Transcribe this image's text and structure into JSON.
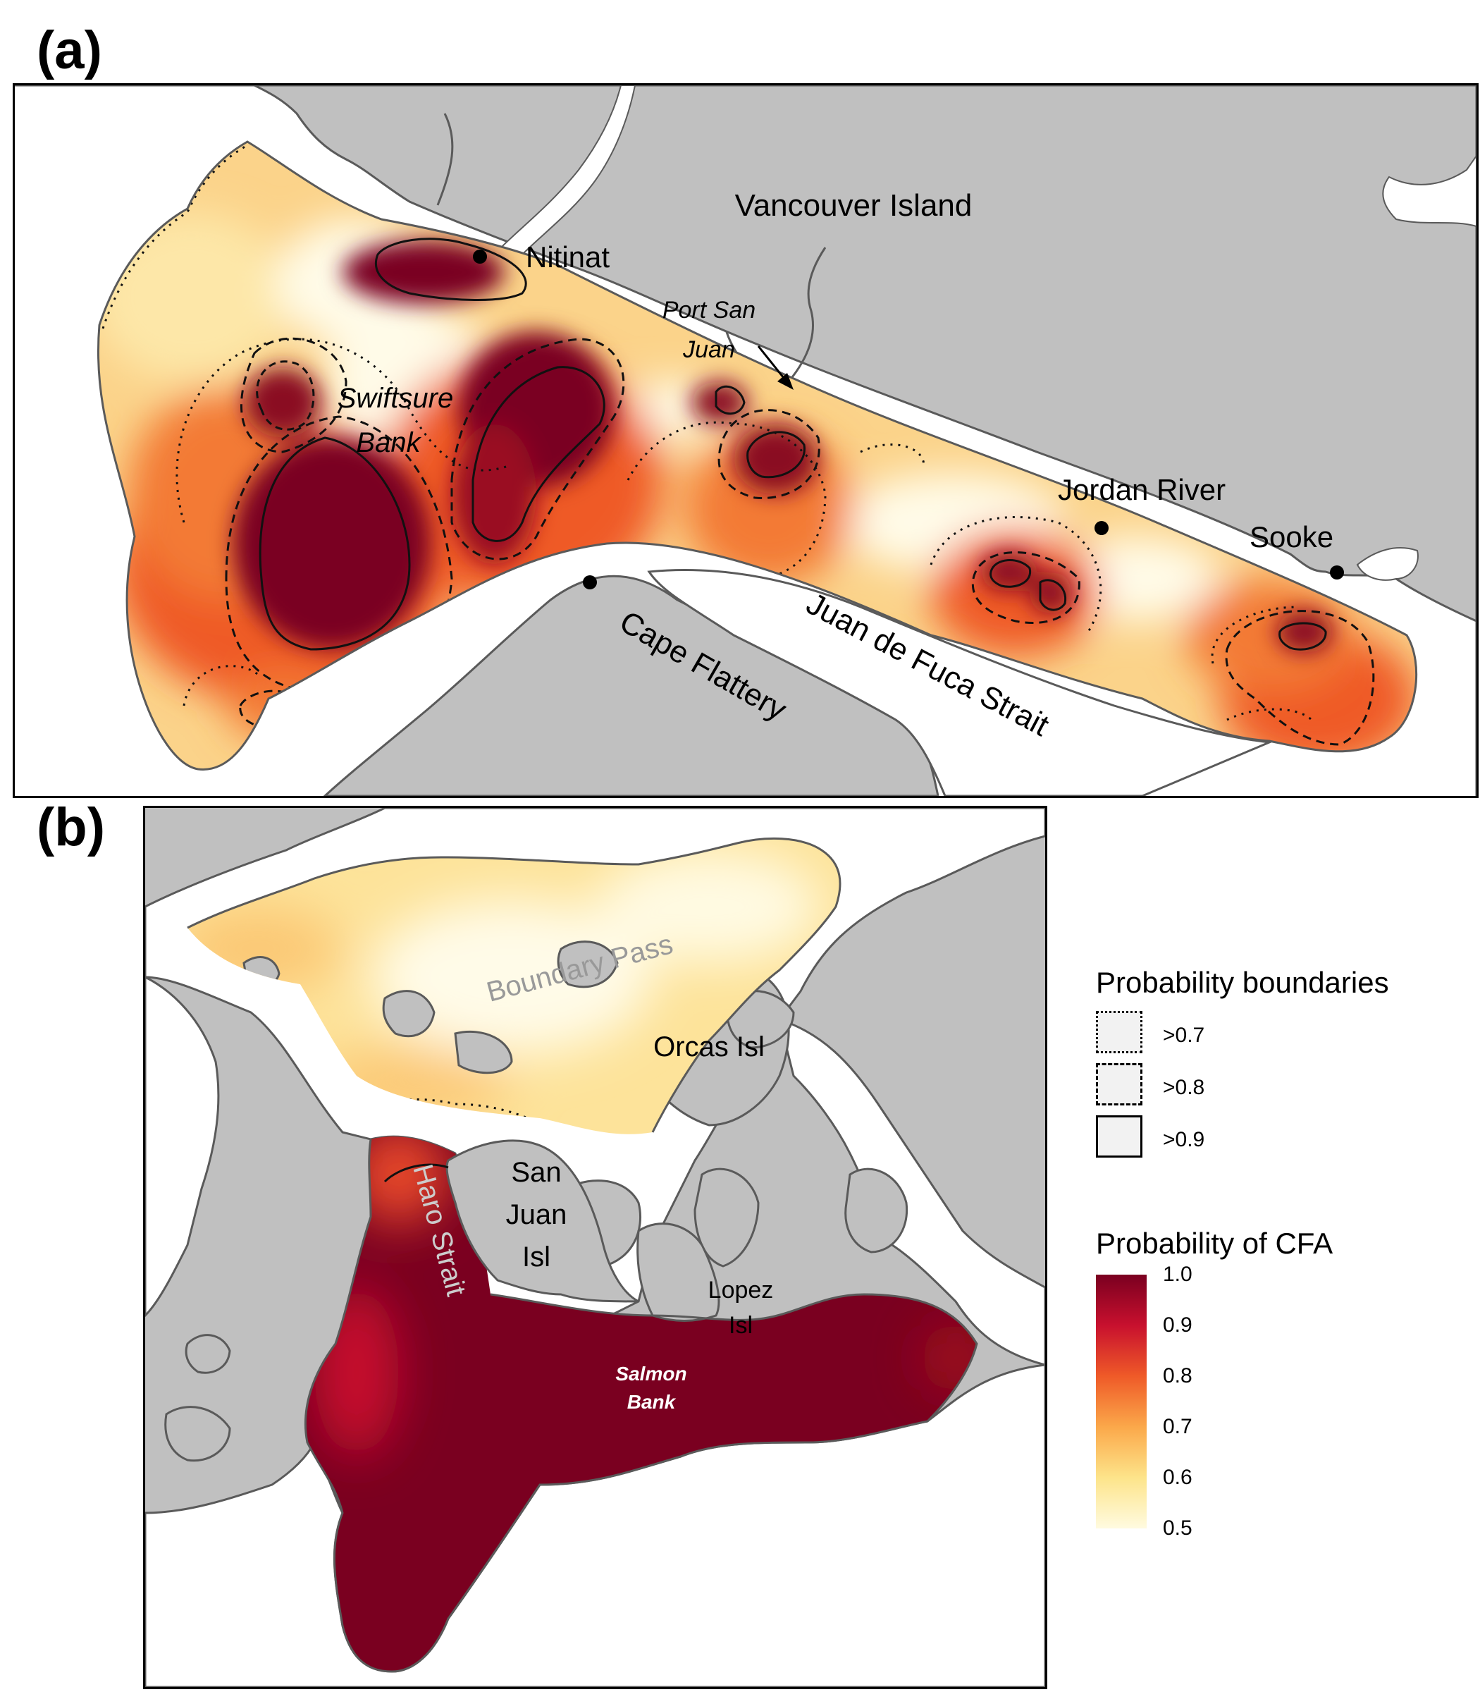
{
  "panels": {
    "a": {
      "label": "(a)",
      "places": {
        "vancouver_island": "Vancouver Island",
        "nitinat": "Nitinat",
        "port_san_juan_1": "Port San",
        "port_san_juan_2": "Juan",
        "swiftsure_1": "Swiftsure",
        "swiftsure_2": "Bank",
        "jordan_river": "Jordan River",
        "sooke": "Sooke",
        "cape_flattery": "Cape Flattery",
        "juan_de_fuca": "Juan de Fuca Strait"
      }
    },
    "b": {
      "label": "(b)",
      "places": {
        "boundary_pass": "Boundary Pass",
        "orcas": "Orcas Isl",
        "san_juan_1": "San",
        "san_juan_2": "Juan",
        "san_juan_3": "Isl",
        "haro": "Haro Strait",
        "lopez_1": "Lopez",
        "lopez_2": "Isl",
        "salmon_1": "Salmon",
        "salmon_2": "Bank"
      }
    }
  },
  "legend": {
    "boundaries": {
      "title": "Probability boundaries",
      "items": [
        {
          "label": ">0.7",
          "style": "dotted"
        },
        {
          "label": ">0.8",
          "style": "dashed"
        },
        {
          "label": ">0.9",
          "style": "solid"
        }
      ]
    },
    "colorbar": {
      "title": "Probability of CFA",
      "ticks": [
        "1.0",
        "0.9",
        "0.8",
        "0.7",
        "0.6",
        "0.5"
      ],
      "range": [
        0.5,
        1.0
      ],
      "colors": [
        "#fffbe0",
        "#fde48a",
        "#fba84a",
        "#ef5a28",
        "#c8102e",
        "#7a0020"
      ]
    }
  },
  "colors": {
    "land": "#c0c0c0",
    "coast": "#5a5a5a",
    "high_probability": "#7a0020",
    "low_probability": "#fff7d8"
  }
}
